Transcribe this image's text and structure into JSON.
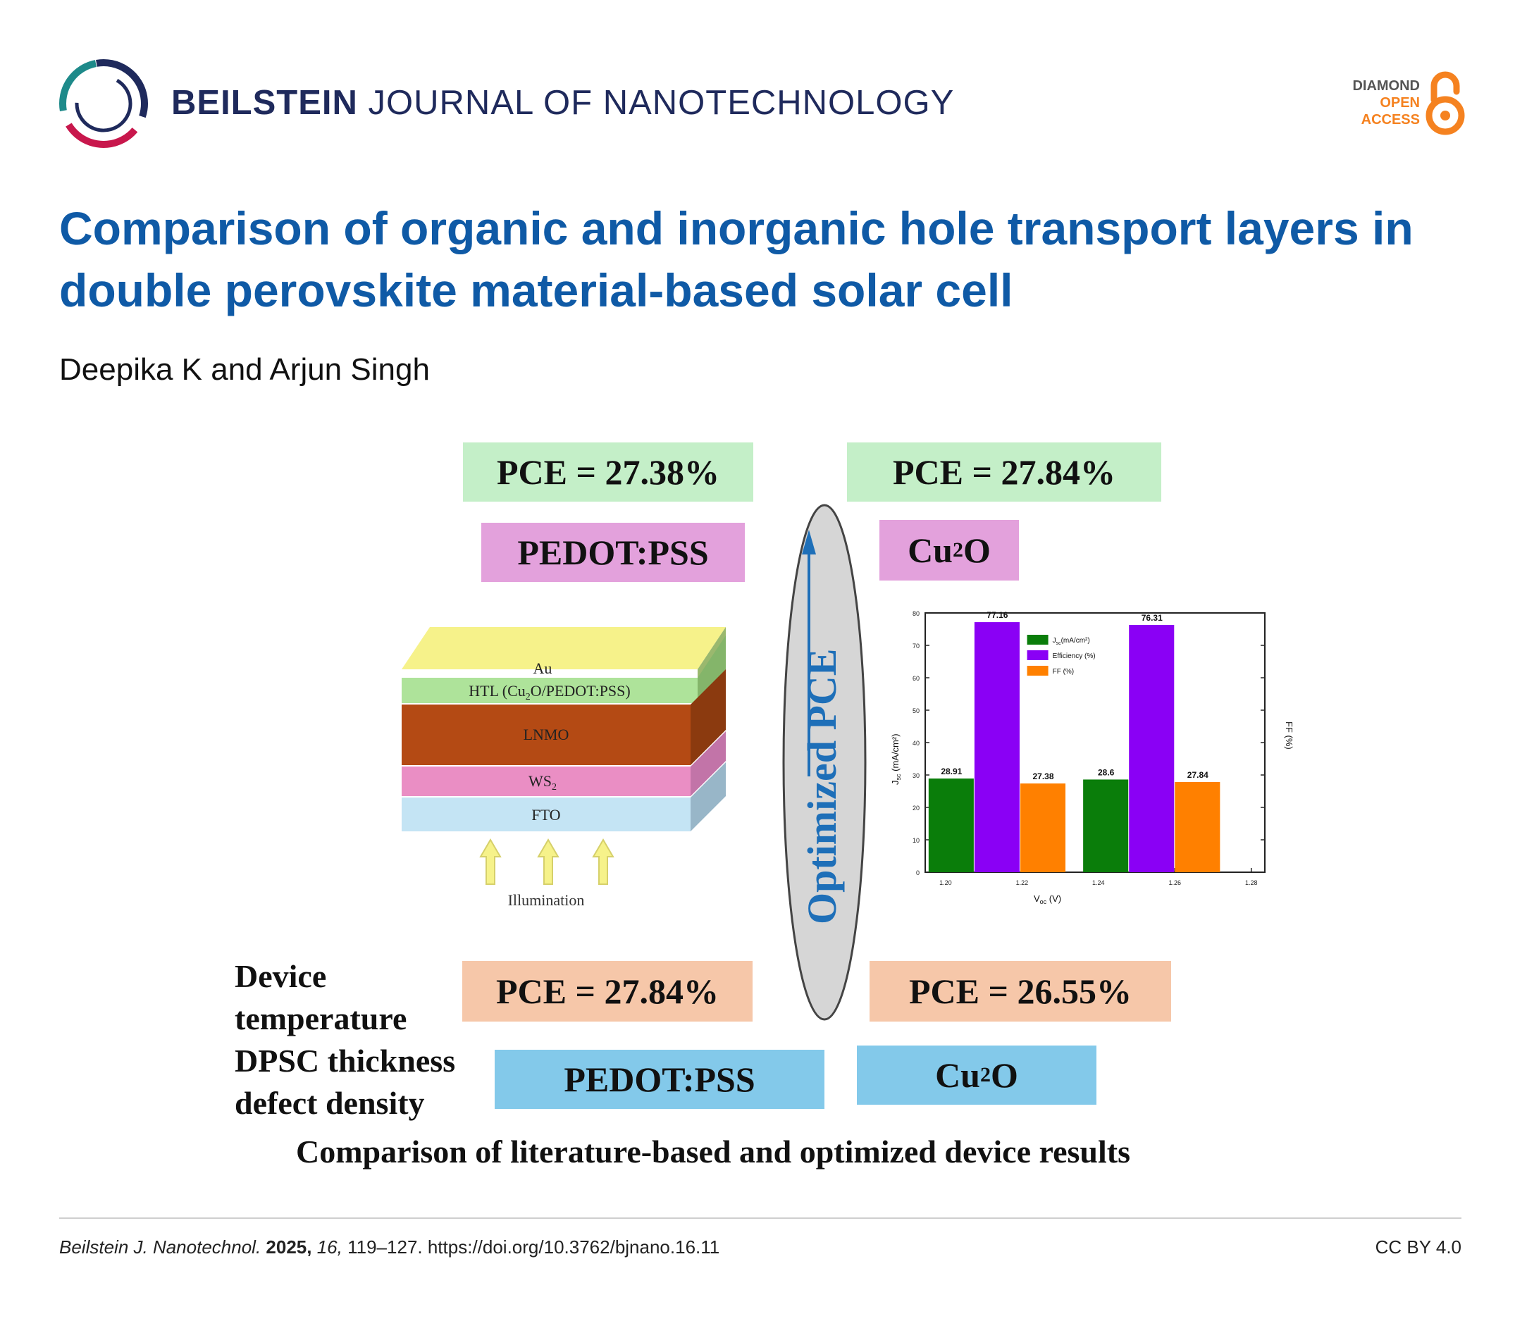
{
  "header": {
    "journal_bold": "BEILSTEIN",
    "journal_rest": "JOURNAL OF NANOTECHNOLOGY",
    "oa_line1": "DIAMOND",
    "oa_line2": "OPEN",
    "oa_line3": "ACCESS"
  },
  "paper": {
    "title": "Comparison of organic and inorganic hole transport layers in double perovskite material-based solar cell",
    "authors": "Deepika K and Arjun Singh"
  },
  "abstract": {
    "pce_tl": "PCE = 27.38%",
    "pce_tr": "PCE = 27.84%",
    "htl_tl": "PEDOT:PSS",
    "htl_tr_main": "Cu",
    "htl_tr_sub": "2",
    "htl_tr_end": "O",
    "pce_bl": "PCE = 27.84%",
    "pce_br": "PCE = 26.55%",
    "htl_bl": "PEDOT:PSS",
    "htl_br_main": "Cu",
    "htl_br_sub": "2",
    "htl_br_end": "O",
    "ellipse_label": "Optimized PCE",
    "layers": {
      "au": "Au",
      "htl": "HTL (Cu",
      "htl_sub": "2",
      "htl_end": "O/PEDOT:PSS)",
      "lnmo": "LNMO",
      "ws": "WS",
      "ws_sub": "2",
      "fto": "FTO",
      "illumination": "Illumination"
    },
    "factors": [
      "Device",
      "temperature",
      "DPSC thickness",
      "defect density"
    ],
    "caption": "Comparison of literature-based and optimized device results"
  },
  "chart_data": {
    "type": "bar",
    "x_ticks": [
      "1.20",
      "1.22",
      "1.24",
      "1.26",
      "1.28"
    ],
    "xlabel": "V",
    "xlabel_sub": "oc",
    "xlabel_end": " (V)",
    "ylabel": "J",
    "ylabel_sub": "sc",
    "ylabel_end": " (mA/cm²)",
    "ylabel_right": "FF (%)",
    "ylim": [
      0,
      80
    ],
    "y_ticks": [
      0,
      10,
      20,
      30,
      40,
      50,
      60,
      70,
      80
    ],
    "groups": [
      {
        "bars": [
          {
            "series": 0,
            "value": 28.91,
            "label": "28.91"
          },
          {
            "series": 1,
            "value": 77.16,
            "label": "77.16"
          },
          {
            "series": 2,
            "value": 27.38,
            "label": "27.38"
          }
        ]
      },
      {
        "bars": [
          {
            "series": 0,
            "value": 28.6,
            "label": "28.6"
          },
          {
            "series": 1,
            "value": 76.31,
            "label": "76.31"
          },
          {
            "series": 2,
            "value": 27.84,
            "label": "27.84"
          }
        ]
      }
    ],
    "series": [
      {
        "name": "J",
        "name_sub": "sc",
        "name_end": "(mA/cm²)",
        "color": "#0a7d0a"
      },
      {
        "name": "Efficiency (%)",
        "name_sub": "",
        "name_end": "",
        "color": "#8a00f5"
      },
      {
        "name": "FF (%)",
        "name_sub": "",
        "name_end": "",
        "color": "#ff8000"
      }
    ],
    "legend_position": "top-center"
  },
  "footer": {
    "journal_abbrev": "Beilstein J. Nanotechnol.",
    "year": "2025,",
    "volume": "16,",
    "pages_doi": "119–127. https://doi.org/10.3762/bjnano.16.11",
    "license": "CC BY 4.0"
  }
}
